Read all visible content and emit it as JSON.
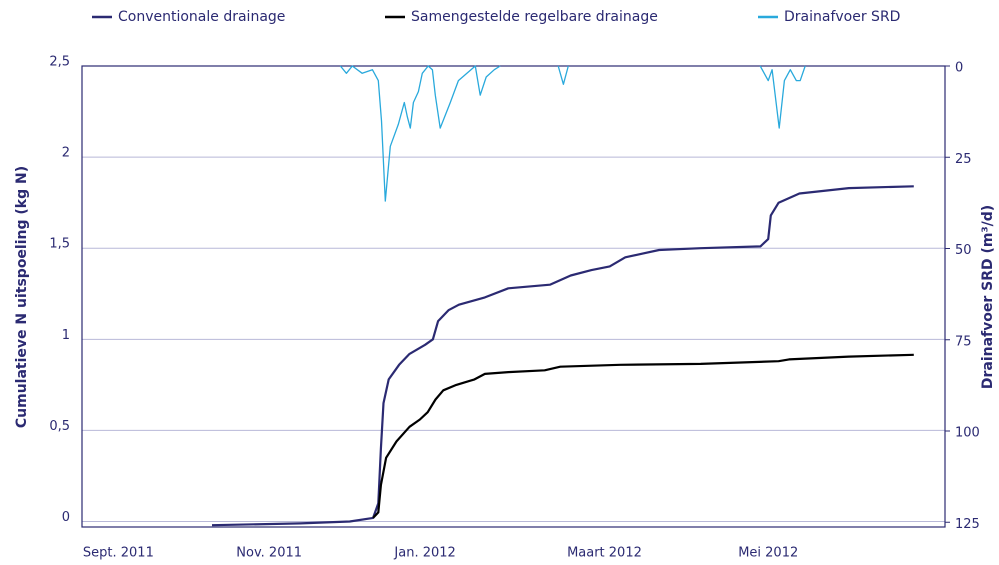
{
  "chart_data": {
    "type": "line",
    "xlabel_ticks_note": null,
    "ylabel": "Cumulatieve N uitspoeling (kg N)",
    "y2label": "Drainafvoer SRD (m³/d)",
    "xlim": [
      -14,
      318
    ],
    "xticks": [
      {
        "value": 0,
        "label": "Sept. 2011"
      },
      {
        "value": 58,
        "label": "Nov. 2011"
      },
      {
        "value": 118,
        "label": "Jan. 2012"
      },
      {
        "value": 187,
        "label": "Maart 2012"
      },
      {
        "value": 250,
        "label": "Mei 2012"
      }
    ],
    "ylim": [
      -0.03,
      2.5
    ],
    "yticks": [
      0,
      {
        "value": 0.5,
        "label": "0,5"
      },
      1,
      {
        "value": 1.5,
        "label": "1,5"
      },
      2,
      {
        "value": 2.5,
        "label": "2,5"
      }
    ],
    "y2lim": [
      126.3,
      0
    ],
    "y2ticks": [
      0,
      25,
      50,
      75,
      100,
      125
    ],
    "grid": true,
    "legend": "top",
    "series": [
      {
        "name": "Conventionale drainage",
        "color": "#2b2a72",
        "x": [
          36,
          70,
          89,
          98,
          100,
          101,
          102,
          104,
          108,
          112,
          118,
          121,
          123,
          127,
          131,
          141,
          150,
          166,
          174,
          182,
          189,
          195,
          208,
          224,
          247,
          250,
          251,
          254,
          262,
          281,
          306
        ],
        "values": [
          -0.02,
          -0.01,
          0,
          0.02,
          0.1,
          0.4,
          0.65,
          0.78,
          0.86,
          0.92,
          0.97,
          1.0,
          1.1,
          1.16,
          1.19,
          1.23,
          1.28,
          1.3,
          1.35,
          1.38,
          1.4,
          1.45,
          1.49,
          1.5,
          1.51,
          1.55,
          1.68,
          1.75,
          1.8,
          1.83,
          1.84
        ]
      },
      {
        "name": "Samengestelde regelbare drainage",
        "color": "#000000",
        "x": [
          98,
          100,
          101,
          103,
          107,
          112,
          116,
          119,
          122,
          125,
          130,
          137,
          141,
          150,
          164,
          170,
          193,
          224,
          254,
          258,
          281,
          306
        ],
        "values": [
          0.02,
          0.05,
          0.2,
          0.35,
          0.44,
          0.52,
          0.56,
          0.6,
          0.67,
          0.72,
          0.75,
          0.78,
          0.81,
          0.82,
          0.83,
          0.85,
          0.86,
          0.865,
          0.88,
          0.89,
          0.905,
          0.915
        ]
      },
      {
        "name": "Drainafvoer SRD",
        "color": "#29a9dc",
        "axis": "y2",
        "x": [
          85.4,
          87.7,
          90,
          93.8,
          97.7,
          100,
          101.2,
          102.7,
          104.6,
          107.7,
          110,
          111.2,
          112.3,
          113.5,
          115.4,
          116.9,
          119.2,
          120.8,
          121.9,
          123.8,
          127.7,
          130.8,
          137.3,
          139.2,
          141.5,
          144.6,
          146.9,
          158,
          169.2,
          171.2,
          173.1,
          200,
          246.9,
          250,
          251.5,
          254.2,
          256.2,
          258.5,
          260.8,
          262.3,
          264.2
        ],
        "values": [
          0,
          2,
          0,
          2,
          1,
          4,
          15,
          37,
          22,
          16,
          10,
          14,
          17,
          10,
          7,
          2,
          0,
          1,
          8,
          17,
          10,
          4,
          0,
          8,
          3,
          1,
          0,
          null,
          0,
          5,
          0,
          null,
          0,
          4,
          1,
          17,
          4,
          1,
          4,
          4,
          0
        ]
      }
    ]
  }
}
